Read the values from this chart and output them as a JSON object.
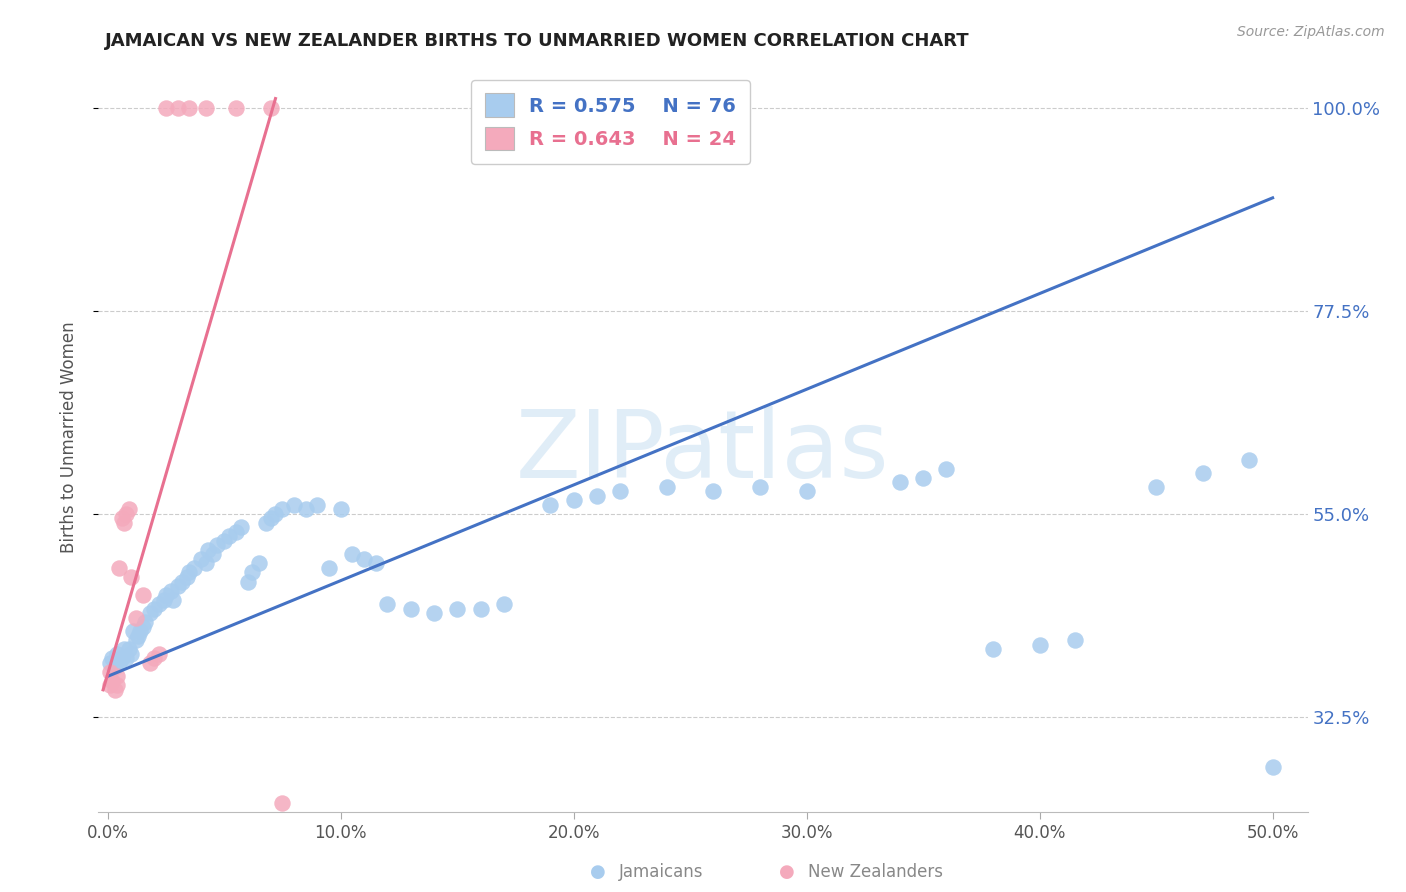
{
  "title": "JAMAICAN VS NEW ZEALANDER BIRTHS TO UNMARRIED WOMEN CORRELATION CHART",
  "source": "Source: ZipAtlas.com",
  "ylabel": "Births to Unmarried Women",
  "blue_R": 0.575,
  "blue_N": 76,
  "pink_R": 0.643,
  "pink_N": 24,
  "blue_color": "#A8CCEE",
  "pink_color": "#F4AABC",
  "blue_line_color": "#4472C4",
  "pink_line_color": "#E87090",
  "watermark_color": "#D0E4F4",
  "grid_color": "#CCCCCC",
  "title_color": "#222222",
  "source_color": "#999999",
  "axis_label_color": "#4472C4",
  "bottom_label_color": "#888888",
  "ylabel_color": "#555555",
  "xtick_color": "#555555",
  "blue_x": [
    0.001,
    0.002,
    0.003,
    0.004,
    0.005,
    0.006,
    0.007,
    0.008,
    0.009,
    0.01,
    0.011,
    0.012,
    0.013,
    0.014,
    0.015,
    0.016,
    0.018,
    0.02,
    0.022,
    0.024,
    0.025,
    0.027,
    0.028,
    0.03,
    0.032,
    0.034,
    0.035,
    0.037,
    0.04,
    0.042,
    0.043,
    0.045,
    0.047,
    0.05,
    0.052,
    0.055,
    0.057,
    0.06,
    0.062,
    0.065,
    0.068,
    0.07,
    0.072,
    0.075,
    0.08,
    0.085,
    0.09,
    0.095,
    0.1,
    0.105,
    0.11,
    0.115,
    0.12,
    0.13,
    0.14,
    0.15,
    0.16,
    0.17,
    0.19,
    0.2,
    0.21,
    0.22,
    0.24,
    0.26,
    0.28,
    0.3,
    0.34,
    0.35,
    0.36,
    0.38,
    0.4,
    0.415,
    0.45,
    0.47,
    0.49,
    0.5
  ],
  "blue_y": [
    0.385,
    0.39,
    0.38,
    0.395,
    0.385,
    0.39,
    0.4,
    0.39,
    0.4,
    0.395,
    0.42,
    0.41,
    0.415,
    0.42,
    0.425,
    0.43,
    0.44,
    0.445,
    0.45,
    0.455,
    0.46,
    0.465,
    0.455,
    0.47,
    0.475,
    0.48,
    0.485,
    0.49,
    0.5,
    0.495,
    0.51,
    0.505,
    0.515,
    0.52,
    0.525,
    0.53,
    0.535,
    0.475,
    0.485,
    0.495,
    0.54,
    0.545,
    0.55,
    0.555,
    0.56,
    0.555,
    0.56,
    0.49,
    0.555,
    0.505,
    0.5,
    0.495,
    0.45,
    0.445,
    0.44,
    0.445,
    0.445,
    0.45,
    0.56,
    0.565,
    0.57,
    0.575,
    0.58,
    0.575,
    0.58,
    0.575,
    0.585,
    0.59,
    0.6,
    0.4,
    0.405,
    0.41,
    0.58,
    0.595,
    0.61,
    0.27
  ],
  "pink_x": [
    0.001,
    0.001,
    0.002,
    0.003,
    0.004,
    0.004,
    0.005,
    0.006,
    0.007,
    0.008,
    0.009,
    0.01,
    0.012,
    0.015,
    0.018,
    0.02,
    0.022,
    0.025,
    0.03,
    0.035,
    0.042,
    0.055,
    0.07,
    0.075
  ],
  "pink_y": [
    0.375,
    0.36,
    0.365,
    0.355,
    0.37,
    0.36,
    0.49,
    0.545,
    0.54,
    0.55,
    0.555,
    0.48,
    0.435,
    0.46,
    0.385,
    0.39,
    0.395,
    1.0,
    1.0,
    1.0,
    1.0,
    1.0,
    1.0,
    0.23
  ],
  "blue_line_x": [
    0.0,
    0.5
  ],
  "blue_line_y": [
    0.37,
    0.9
  ],
  "pink_line_x": [
    -0.002,
    0.072
  ],
  "pink_line_y": [
    0.355,
    1.01
  ],
  "xmin": -0.004,
  "xmax": 0.515,
  "ymin": 0.22,
  "ymax": 1.05,
  "yticks": [
    0.325,
    0.55,
    0.775,
    1.0
  ],
  "ytick_labels": [
    "32.5%",
    "55.0%",
    "77.5%",
    "100.0%"
  ],
  "xticks": [
    0.0,
    0.1,
    0.2,
    0.3,
    0.4,
    0.5
  ],
  "xtick_labels": [
    "0.0%",
    "10.0%",
    "20.0%",
    "30.0%",
    "40.0%",
    "50.0%"
  ]
}
